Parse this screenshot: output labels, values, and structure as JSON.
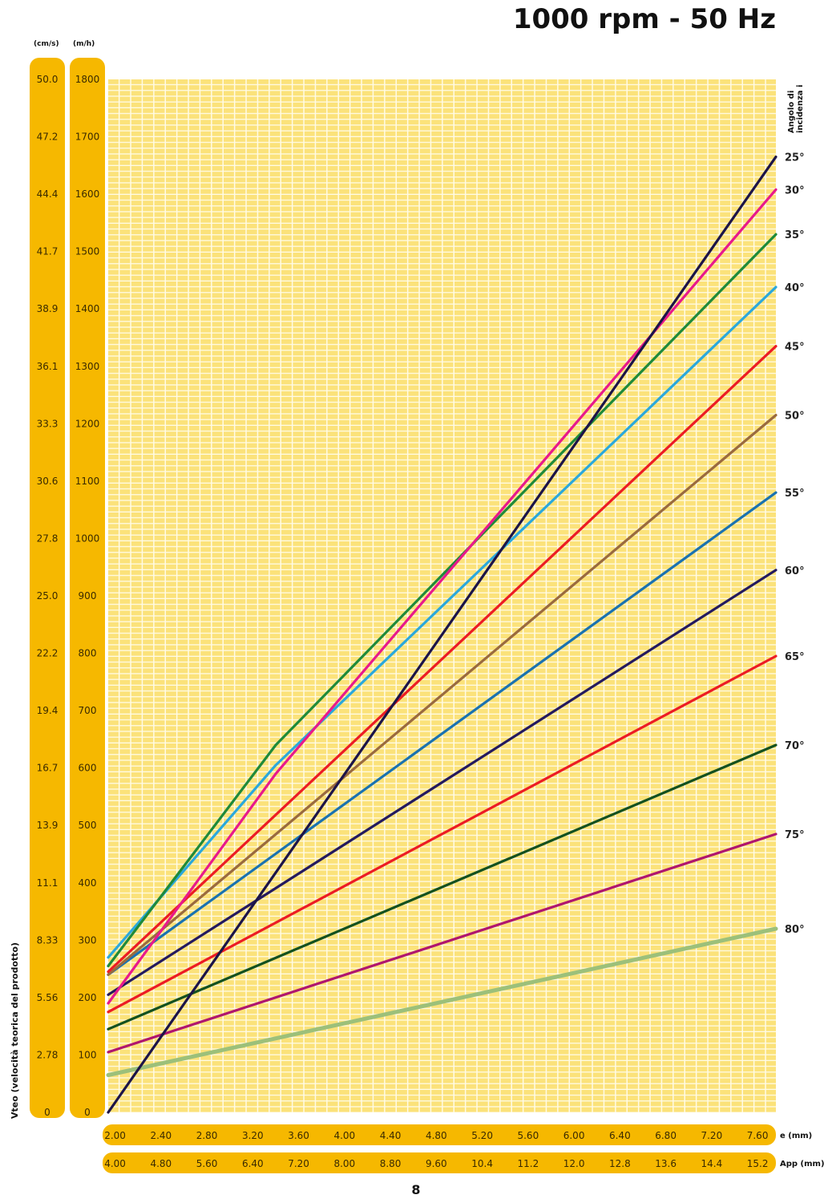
{
  "page": {
    "number": "8"
  },
  "chart_data": {
    "type": "line",
    "title": "1000 rpm - 50 Hz",
    "y_units_left": "(cm/s)",
    "y_units_right": "(m/h)",
    "y_vertical_label": "Vteo (velocità teorica del prodotto)",
    "y_ticks_cms": [
      "0",
      "2.78",
      "5.56",
      "8.33",
      "11.1",
      "13.9",
      "16.7",
      "19.4",
      "22.2",
      "25.0",
      "27.8",
      "30.6",
      "33.3",
      "36.1",
      "38.9",
      "41.7",
      "44.4",
      "47.2",
      "50.0"
    ],
    "y_ticks_mh": [
      "0",
      "100",
      "200",
      "300",
      "400",
      "500",
      "600",
      "700",
      "800",
      "900",
      "1000",
      "1100",
      "1200",
      "1300",
      "1400",
      "1500",
      "1600",
      "1700",
      "1800"
    ],
    "ylim": [
      0,
      1800
    ],
    "x_primary_label": "e (mm)",
    "x_primary_ticks": [
      "2.00",
      "2.40",
      "2.80",
      "3.20",
      "3.60",
      "4.00",
      "4.40",
      "4.80",
      "5.20",
      "5.60",
      "6.00",
      "6.40",
      "6.80",
      "7.20",
      "7.60"
    ],
    "x_secondary_label": "App (mm)",
    "x_secondary_ticks": [
      "4.00",
      "4.80",
      "5.60",
      "6.40",
      "7.20",
      "8.00",
      "8.80",
      "9.60",
      "10.4",
      "11.2",
      "12.0",
      "12.8",
      "13.6",
      "14.4",
      "15.2"
    ],
    "xlim": [
      1.94,
      7.76
    ],
    "angle_header": "Angolo di incidenza i",
    "grid": true,
    "series": [
      {
        "name": "25°",
        "color": "#1c1448",
        "points": [
          [
            1.94,
            0
          ],
          [
            7.76,
            1665
          ]
        ]
      },
      {
        "name": "30°",
        "color": "#e8198b",
        "points": [
          [
            1.94,
            190
          ],
          [
            3.4,
            590
          ],
          [
            7.76,
            1608
          ]
        ]
      },
      {
        "name": "35°",
        "color": "#1f8a3a",
        "points": [
          [
            1.94,
            255
          ],
          [
            3.4,
            640
          ],
          [
            7.76,
            1530
          ]
        ]
      },
      {
        "name": "40°",
        "color": "#2aa8dc",
        "points": [
          [
            1.94,
            270
          ],
          [
            3.4,
            605
          ],
          [
            7.76,
            1438
          ]
        ]
      },
      {
        "name": "45°",
        "color": "#ec1c24",
        "points": [
          [
            1.94,
            245
          ],
          [
            7.76,
            1335
          ]
        ]
      },
      {
        "name": "50°",
        "color": "#9a6a3e",
        "points": [
          [
            1.94,
            240
          ],
          [
            7.76,
            1215
          ]
        ]
      },
      {
        "name": "55°",
        "color": "#1a72b0",
        "points": [
          [
            1.94,
            240
          ],
          [
            7.76,
            1080
          ]
        ]
      },
      {
        "name": "60°",
        "color": "#241a5e",
        "points": [
          [
            1.94,
            205
          ],
          [
            7.76,
            945
          ]
        ]
      },
      {
        "name": "65°",
        "color": "#ec1c24",
        "points": [
          [
            1.94,
            175
          ],
          [
            7.76,
            795
          ]
        ]
      },
      {
        "name": "70°",
        "color": "#14511f",
        "points": [
          [
            1.94,
            145
          ],
          [
            7.76,
            640
          ]
        ]
      },
      {
        "name": "75°",
        "color": "#b0166e",
        "points": [
          [
            1.94,
            105
          ],
          [
            7.76,
            485
          ]
        ]
      },
      {
        "name": "80°",
        "color": "#9cc07a",
        "points": [
          [
            1.94,
            65
          ],
          [
            7.76,
            320
          ]
        ]
      }
    ]
  }
}
